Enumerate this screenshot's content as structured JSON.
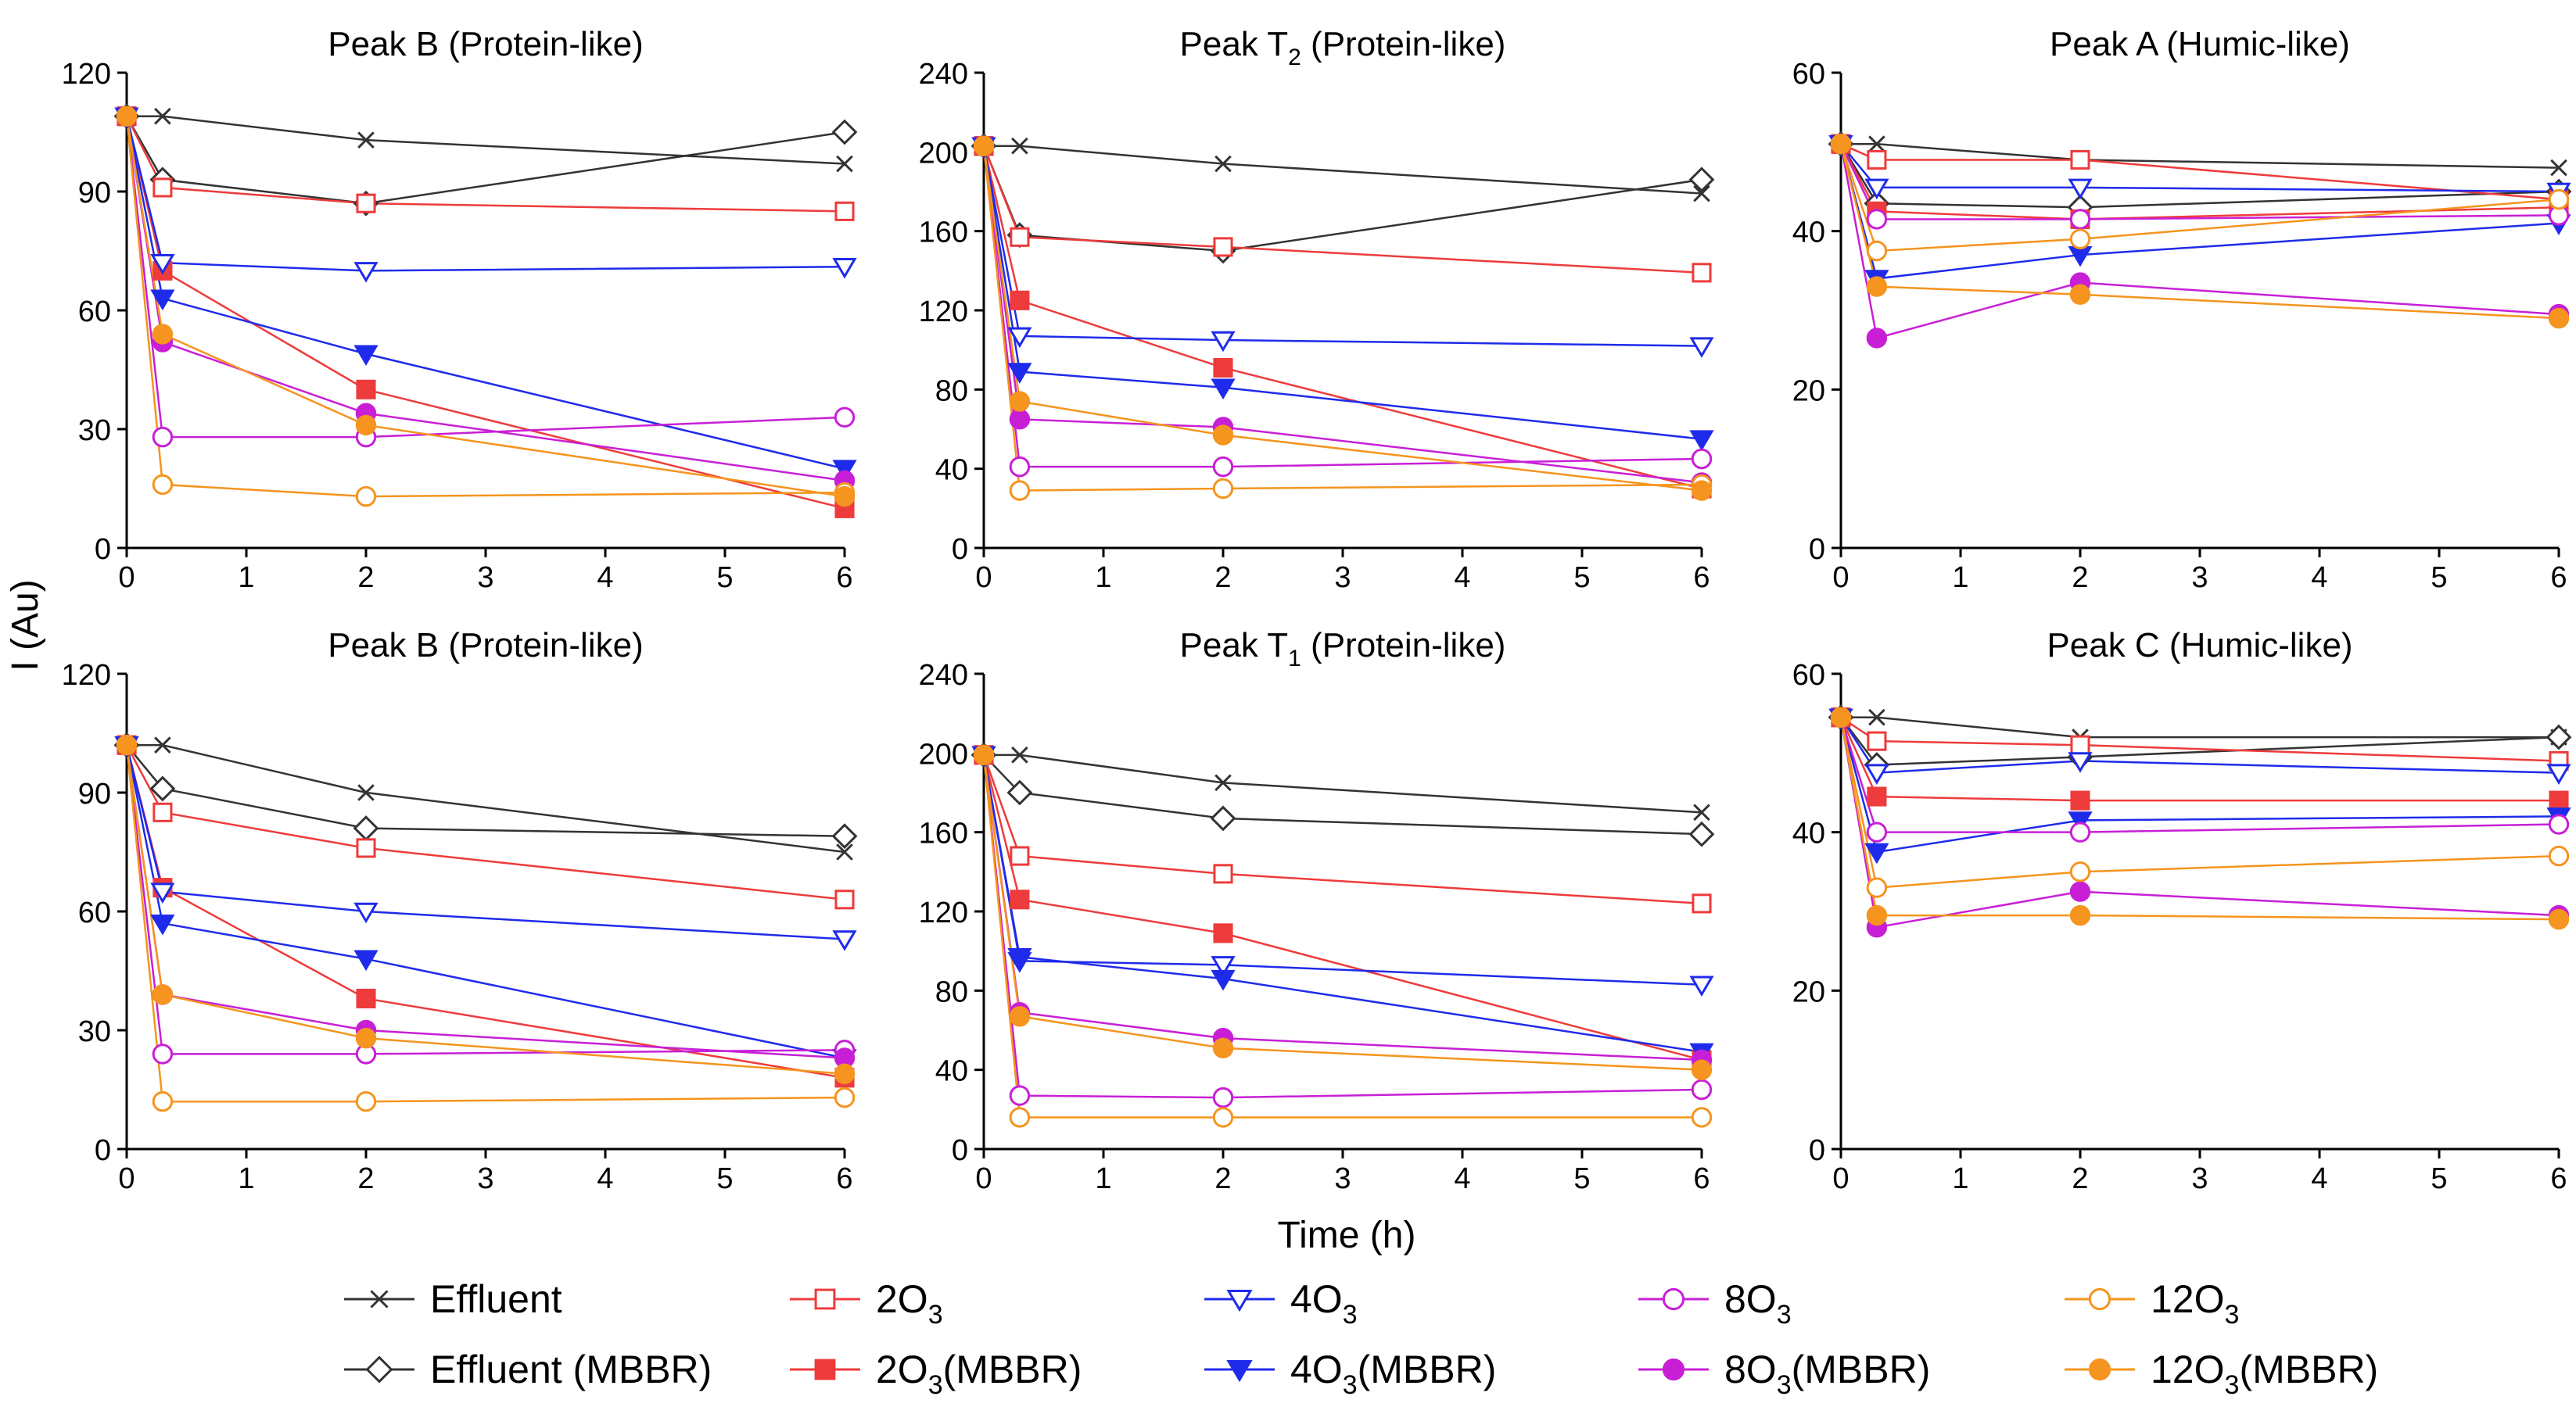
{
  "figure": {
    "ylabel": "I (Au)",
    "xlabel": "Time (h)"
  },
  "series_styles": [
    {
      "key": "eff",
      "label": "Effluent",
      "sub": "",
      "suffix": "",
      "color": "#333333",
      "marker": "x"
    },
    {
      "key": "eff_mbbr",
      "label": "Effluent (MBBR)",
      "sub": "",
      "suffix": "",
      "color": "#333333",
      "marker": "diamond-open"
    },
    {
      "key": "o2",
      "label": "2O",
      "sub": "3",
      "suffix": "",
      "color": "#ee3b3b",
      "marker": "square-open"
    },
    {
      "key": "o2_mbbr",
      "label": "2O",
      "sub": "3",
      "suffix": "(MBBR)",
      "color": "#ee3b3b",
      "marker": "square-filled"
    },
    {
      "key": "o4",
      "label": "4O",
      "sub": "3",
      "suffix": "",
      "color": "#1f2bea",
      "marker": "tri-down-open"
    },
    {
      "key": "o4_mbbr",
      "label": "4O",
      "sub": "3",
      "suffix": "(MBBR)",
      "color": "#1f2bea",
      "marker": "tri-down-filled"
    },
    {
      "key": "o8",
      "label": "8O",
      "sub": "3",
      "suffix": "",
      "color": "#c81fd6",
      "marker": "circle-open"
    },
    {
      "key": "o8_mbbr",
      "label": "8O",
      "sub": "3",
      "suffix": "(MBBR)",
      "color": "#c81fd6",
      "marker": "circle-filled"
    },
    {
      "key": "o12",
      "label": "12O",
      "sub": "3",
      "suffix": "",
      "color": "#f5941e",
      "marker": "circle-open"
    },
    {
      "key": "o12_mbbr",
      "label": "12O",
      "sub": "3",
      "suffix": "(MBBR)",
      "color": "#f5941e",
      "marker": "circle-filled"
    }
  ],
  "chart_data": [
    {
      "type": "line",
      "title": "Peak B (Protein-like)",
      "title_main": "Peak B (Protein-like)",
      "title_sub": "",
      "title_rest": "",
      "x": [
        0,
        0.3,
        2,
        6
      ],
      "xlim": [
        0,
        6
      ],
      "xticks": [
        0,
        1,
        2,
        3,
        4,
        5,
        6
      ],
      "ylim": [
        0,
        120
      ],
      "yticks": [
        0,
        30,
        60,
        90,
        120
      ],
      "series": [
        {
          "name": "Effluent",
          "values": [
            109,
            109,
            103,
            97
          ]
        },
        {
          "name": "Effluent (MBBR)",
          "values": [
            109,
            93,
            87,
            105
          ]
        },
        {
          "name": "2O3",
          "values": [
            109,
            91,
            87,
            85
          ]
        },
        {
          "name": "2O3(MBBR)",
          "values": [
            109,
            70,
            40,
            10
          ]
        },
        {
          "name": "4O3",
          "values": [
            109,
            72,
            70,
            71
          ]
        },
        {
          "name": "4O3(MBBR)",
          "values": [
            109,
            63,
            49,
            20
          ]
        },
        {
          "name": "8O3",
          "values": [
            109,
            28,
            28,
            33
          ]
        },
        {
          "name": "8O3(MBBR)",
          "values": [
            109,
            52,
            34,
            17
          ]
        },
        {
          "name": "12O3",
          "values": [
            109,
            16,
            13,
            14
          ]
        },
        {
          "name": "12O3(MBBR)",
          "values": [
            109,
            54,
            31,
            13
          ]
        }
      ]
    },
    {
      "type": "line",
      "title": "Peak T2 (Protein-like)",
      "title_main": "Peak T",
      "title_sub": "2",
      "title_rest": " (Protein-like)",
      "x": [
        0,
        0.3,
        2,
        6
      ],
      "xlim": [
        0,
        6
      ],
      "xticks": [
        0,
        1,
        2,
        3,
        4,
        5,
        6
      ],
      "ylim": [
        0,
        240
      ],
      "yticks": [
        0,
        40,
        80,
        120,
        160,
        200,
        240
      ],
      "series": [
        {
          "name": "Effluent",
          "values": [
            203,
            203,
            194,
            179
          ]
        },
        {
          "name": "Effluent (MBBR)",
          "values": [
            203,
            158,
            150,
            186
          ]
        },
        {
          "name": "2O3",
          "values": [
            203,
            157,
            152,
            139
          ]
        },
        {
          "name": "2O3(MBBR)",
          "values": [
            203,
            125,
            91,
            30
          ]
        },
        {
          "name": "4O3",
          "values": [
            203,
            107,
            105,
            102
          ]
        },
        {
          "name": "4O3(MBBR)",
          "values": [
            203,
            89,
            81,
            55
          ]
        },
        {
          "name": "8O3",
          "values": [
            203,
            41,
            41,
            45
          ]
        },
        {
          "name": "8O3(MBBR)",
          "values": [
            203,
            65,
            61,
            33
          ]
        },
        {
          "name": "12O3",
          "values": [
            203,
            29,
            30,
            32
          ]
        },
        {
          "name": "12O3(MBBR)",
          "values": [
            203,
            74,
            57,
            29
          ]
        }
      ]
    },
    {
      "type": "line",
      "title": "Peak A (Humic-like)",
      "title_main": "Peak A (Humic-like)",
      "title_sub": "",
      "title_rest": "",
      "x": [
        0,
        0.3,
        2,
        6
      ],
      "xlim": [
        0,
        6
      ],
      "xticks": [
        0,
        1,
        2,
        3,
        4,
        5,
        6
      ],
      "ylim": [
        0,
        60
      ],
      "yticks": [
        0,
        20,
        40,
        60
      ],
      "series": [
        {
          "name": "Effluent",
          "values": [
            51,
            51,
            49,
            48
          ]
        },
        {
          "name": "Effluent (MBBR)",
          "values": [
            51,
            43.5,
            43,
            45
          ]
        },
        {
          "name": "2O3",
          "values": [
            51,
            49,
            49,
            44
          ]
        },
        {
          "name": "2O3(MBBR)",
          "values": [
            51,
            42.5,
            41.5,
            43
          ]
        },
        {
          "name": "4O3",
          "values": [
            51,
            45.5,
            45.5,
            45
          ]
        },
        {
          "name": "4O3(MBBR)",
          "values": [
            51,
            34,
            37,
            41
          ]
        },
        {
          "name": "8O3",
          "values": [
            51,
            41.5,
            41.5,
            42
          ]
        },
        {
          "name": "8O3(MBBR)",
          "values": [
            51,
            26.5,
            33.5,
            29.5
          ]
        },
        {
          "name": "12O3",
          "values": [
            51,
            37.5,
            39,
            44
          ]
        },
        {
          "name": "12O3(MBBR)",
          "values": [
            51,
            33,
            32,
            29
          ]
        }
      ]
    },
    {
      "type": "line",
      "title": "Peak B (Protein-like)",
      "title_main": "Peak B (Protein-like)",
      "title_sub": "",
      "title_rest": "",
      "x": [
        0,
        0.3,
        2,
        6
      ],
      "xlim": [
        0,
        6
      ],
      "xticks": [
        0,
        1,
        2,
        3,
        4,
        5,
        6
      ],
      "ylim": [
        0,
        120
      ],
      "yticks": [
        0,
        30,
        60,
        90,
        120
      ],
      "series": [
        {
          "name": "Effluent",
          "values": [
            102,
            102,
            90,
            75
          ]
        },
        {
          "name": "Effluent (MBBR)",
          "values": [
            102,
            91,
            81,
            79
          ]
        },
        {
          "name": "2O3",
          "values": [
            102,
            85,
            76,
            63
          ]
        },
        {
          "name": "2O3(MBBR)",
          "values": [
            102,
            66,
            38,
            18
          ]
        },
        {
          "name": "4O3",
          "values": [
            102,
            65,
            60,
            53
          ]
        },
        {
          "name": "4O3(MBBR)",
          "values": [
            102,
            57,
            48,
            23
          ]
        },
        {
          "name": "8O3",
          "values": [
            102,
            24,
            24,
            25
          ]
        },
        {
          "name": "8O3(MBBR)",
          "values": [
            102,
            39,
            30,
            23
          ]
        },
        {
          "name": "12O3",
          "values": [
            102,
            12,
            12,
            13
          ]
        },
        {
          "name": "12O3(MBBR)",
          "values": [
            102,
            39,
            28,
            19
          ]
        }
      ]
    },
    {
      "type": "line",
      "title": "Peak T1 (Protein-like)",
      "title_main": "Peak T",
      "title_sub": "1",
      "title_rest": " (Protein-like)",
      "x": [
        0,
        0.3,
        2,
        6
      ],
      "xlim": [
        0,
        6
      ],
      "xticks": [
        0,
        1,
        2,
        3,
        4,
        5,
        6
      ],
      "ylim": [
        0,
        240
      ],
      "yticks": [
        0,
        40,
        80,
        120,
        160,
        200,
        240
      ],
      "series": [
        {
          "name": "Effluent",
          "values": [
            199,
            199,
            185,
            170
          ]
        },
        {
          "name": "Effluent (MBBR)",
          "values": [
            199,
            180,
            167,
            159
          ]
        },
        {
          "name": "2O3",
          "values": [
            199,
            148,
            139,
            124
          ]
        },
        {
          "name": "2O3(MBBR)",
          "values": [
            199,
            126,
            109,
            45
          ]
        },
        {
          "name": "4O3",
          "values": [
            199,
            95,
            93,
            83
          ]
        },
        {
          "name": "4O3(MBBR)",
          "values": [
            199,
            97,
            86,
            49
          ]
        },
        {
          "name": "8O3",
          "values": [
            199,
            27,
            26,
            30
          ]
        },
        {
          "name": "8O3(MBBR)",
          "values": [
            199,
            69,
            56,
            45
          ]
        },
        {
          "name": "12O3",
          "values": [
            199,
            16,
            16,
            16
          ]
        },
        {
          "name": "12O3(MBBR)",
          "values": [
            199,
            67,
            51,
            40
          ]
        }
      ]
    },
    {
      "type": "line",
      "title": "Peak C (Humic-like)",
      "title_main": "Peak C (Humic-like)",
      "title_sub": "",
      "title_rest": "",
      "x": [
        0,
        0.3,
        2,
        6
      ],
      "xlim": [
        0,
        6
      ],
      "xticks": [
        0,
        1,
        2,
        3,
        4,
        5,
        6
      ],
      "ylim": [
        0,
        60
      ],
      "yticks": [
        0,
        20,
        40,
        60
      ],
      "series": [
        {
          "name": "Effluent",
          "values": [
            54.5,
            54.5,
            52,
            52
          ]
        },
        {
          "name": "Effluent (MBBR)",
          "values": [
            54.5,
            48.5,
            49.5,
            52
          ]
        },
        {
          "name": "2O3",
          "values": [
            54.5,
            51.5,
            51,
            49
          ]
        },
        {
          "name": "2O3(MBBR)",
          "values": [
            54.5,
            44.5,
            44,
            44
          ]
        },
        {
          "name": "4O3",
          "values": [
            54.5,
            47.5,
            49,
            47.5
          ]
        },
        {
          "name": "4O3(MBBR)",
          "values": [
            54.5,
            37.5,
            41.5,
            42
          ]
        },
        {
          "name": "8O3",
          "values": [
            54.5,
            40,
            40,
            41
          ]
        },
        {
          "name": "8O3(MBBR)",
          "values": [
            54.5,
            28,
            32.5,
            29.5
          ]
        },
        {
          "name": "12O3",
          "values": [
            54.5,
            33,
            35,
            37
          ]
        },
        {
          "name": "12O3(MBBR)",
          "values": [
            54.5,
            29.5,
            29.5,
            29
          ]
        }
      ]
    }
  ]
}
